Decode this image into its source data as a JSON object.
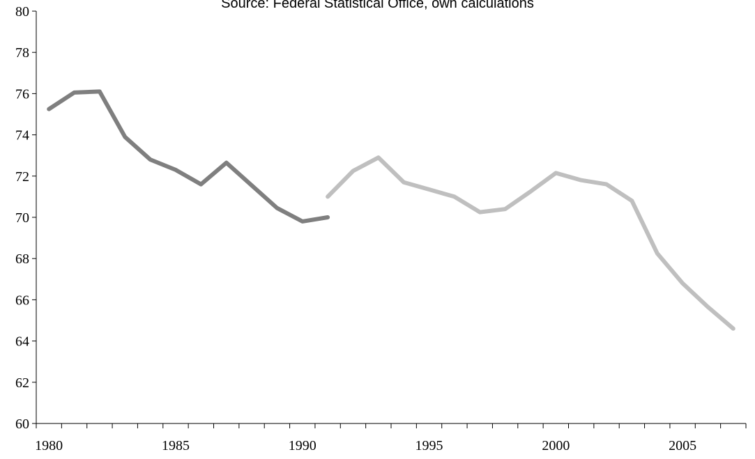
{
  "chart_data": {
    "type": "line",
    "title": "",
    "subtitle": "Source: Federal Statistical Office, own calculations",
    "xlabel": "",
    "ylabel": "",
    "xlim": [
      1980,
      2007
    ],
    "ylim": [
      60,
      80
    ],
    "x_ticks": [
      "1980",
      "1985",
      "1990",
      "1995",
      "2000",
      "2005"
    ],
    "y_ticks": [
      "60",
      "62",
      "64",
      "66",
      "68",
      "70",
      "72",
      "74",
      "76",
      "78",
      "80"
    ],
    "grid": false,
    "series": [
      {
        "color": "#7f7f7f",
        "x": [
          1980,
          1981,
          1982,
          1983,
          1984,
          1985,
          1986,
          1987,
          1988,
          1989,
          1990,
          1991
        ],
        "values": [
          75.25,
          76.05,
          76.1,
          73.9,
          72.8,
          72.3,
          71.6,
          72.65,
          71.55,
          70.45,
          69.8,
          70.0
        ]
      },
      {
        "color": "#bfbfbf",
        "x": [
          1991,
          1992,
          1993,
          1994,
          1995,
          1996,
          1997,
          1998,
          1999,
          2000,
          2001,
          2002,
          2003,
          2004,
          2005,
          2006,
          2007
        ],
        "values": [
          71.0,
          72.25,
          72.9,
          71.7,
          71.35,
          71.0,
          70.25,
          70.4,
          71.25,
          72.15,
          71.8,
          71.6,
          70.8,
          68.25,
          66.8,
          65.65,
          64.6
        ]
      }
    ]
  }
}
